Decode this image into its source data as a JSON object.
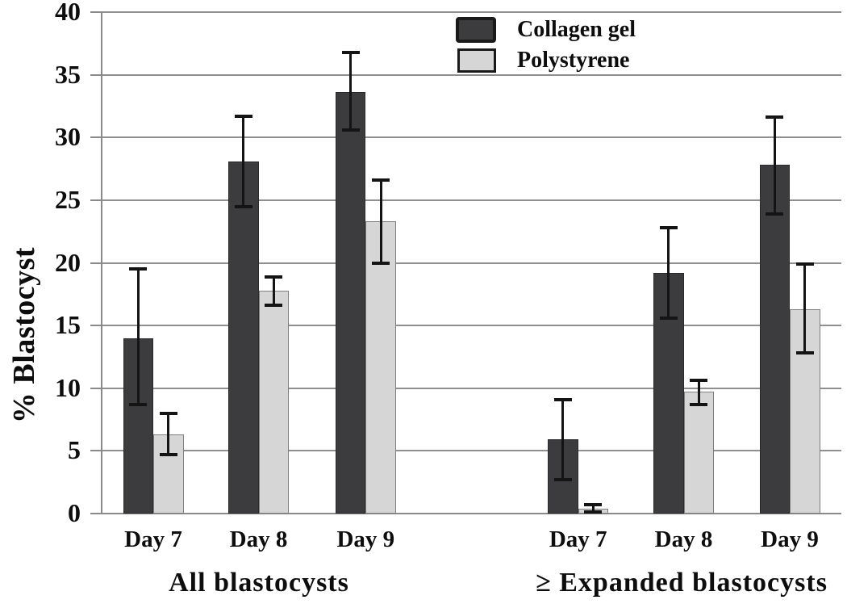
{
  "chart_data": {
    "type": "bar",
    "title": "",
    "xlabel": "",
    "ylabel": "% Blastocyst",
    "ylim": [
      0,
      40
    ],
    "yticks": [
      0,
      5,
      10,
      15,
      20,
      25,
      30,
      35,
      40
    ],
    "grid": true,
    "legend_position": "top-center-inside",
    "groups": [
      {
        "label": "All blastocysts",
        "categories": [
          "Day 7",
          "Day 8",
          "Day 9"
        ],
        "series": [
          {
            "name": "Collagen gel",
            "values": [
              14.0,
              28.1,
              33.6
            ],
            "err_low": [
              8.7,
              24.5,
              30.6
            ],
            "err_high": [
              19.5,
              31.7,
              36.8
            ]
          },
          {
            "name": "Polystyrene",
            "values": [
              6.3,
              17.8,
              23.3
            ],
            "err_low": [
              4.7,
              16.6,
              20.0
            ],
            "err_high": [
              8.0,
              18.9,
              26.6
            ]
          }
        ]
      },
      {
        "label": "≥ Expanded blastocysts",
        "categories": [
          "Day 7",
          "Day 8",
          "Day 9"
        ],
        "series": [
          {
            "name": "Collagen gel",
            "values": [
              5.9,
              19.2,
              27.8
            ],
            "err_low": [
              2.7,
              15.6,
              23.9
            ],
            "err_high": [
              9.1,
              22.8,
              31.6
            ]
          },
          {
            "name": "Polystyrene",
            "values": [
              0.4,
              9.7,
              16.3
            ],
            "err_low": [
              0.1,
              8.7,
              12.8
            ],
            "err_high": [
              0.7,
              10.6,
              19.9
            ]
          }
        ]
      }
    ],
    "colors": {
      "collagen_gel": "#3c3c3e",
      "polystyrene": "#d6d6d6",
      "bar_border_light": "#7f7f7f",
      "gridline": "#8f8f8f",
      "error_bar": "#141414",
      "text": "#0d0d0d",
      "background": "#ffffff"
    }
  }
}
